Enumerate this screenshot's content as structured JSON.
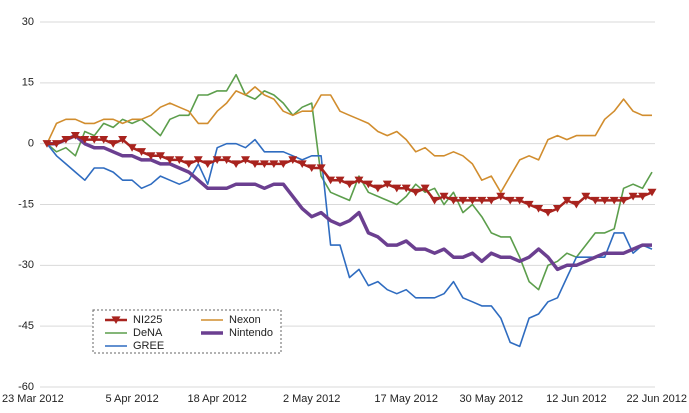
{
  "chart_data": {
    "type": "line",
    "categories": [
      "23 Mar 2012",
      null,
      null,
      null,
      null,
      null,
      null,
      null,
      null,
      "5 Apr 2012",
      null,
      null,
      null,
      null,
      null,
      null,
      null,
      null,
      "18 Apr 2012",
      null,
      null,
      null,
      null,
      null,
      null,
      null,
      null,
      null,
      "2 May 2012",
      null,
      null,
      null,
      null,
      null,
      null,
      null,
      null,
      null,
      "17 May 2012",
      null,
      null,
      null,
      null,
      null,
      null,
      null,
      null,
      "30 May 2012",
      null,
      null,
      null,
      null,
      null,
      null,
      null,
      null,
      "12 Jun 2012",
      null,
      null,
      null,
      null,
      null,
      null,
      null,
      "22 Jun 2012"
    ],
    "series": [
      {
        "name": "DeNA",
        "color": "#5c9e4c",
        "width": 1.6,
        "values": [
          0,
          -2,
          -1,
          -3,
          3,
          2,
          5,
          4,
          6,
          5,
          6,
          4,
          2,
          6,
          7,
          7,
          12,
          12,
          13,
          13,
          17,
          12,
          11,
          13,
          12,
          10,
          7,
          9,
          10,
          -8,
          -12,
          -13,
          -14,
          -8,
          -12,
          -13,
          -14,
          -15,
          -13,
          -10,
          -12,
          -11,
          -15,
          -12,
          -17,
          -15,
          -18,
          -22,
          -23,
          -23,
          -28,
          -34,
          -36,
          -30,
          -29,
          -27,
          -28,
          -25,
          -22,
          -22,
          -21,
          -11,
          -10,
          -11,
          -7
        ]
      },
      {
        "name": "Nexon",
        "color": "#d18d2e",
        "width": 1.6,
        "values": [
          0,
          5,
          6,
          6,
          5,
          5,
          6,
          6,
          5,
          6,
          6,
          7,
          9,
          10,
          9,
          8,
          5,
          5,
          8,
          10,
          13,
          12,
          14,
          12,
          11,
          8,
          7,
          8,
          8,
          12,
          12,
          8,
          7,
          6,
          5,
          3,
          2,
          3,
          1,
          -2,
          -1,
          -3,
          -3,
          -2,
          -3,
          -5,
          -9,
          -8,
          -12,
          -8,
          -4,
          -3,
          -4,
          1,
          2,
          1,
          2,
          2,
          2,
          6,
          8,
          11,
          8,
          7,
          7
        ]
      },
      {
        "name": "GREE",
        "color": "#2f6cc0",
        "width": 1.6,
        "values": [
          0,
          -3,
          -5,
          -7,
          -9,
          -6,
          -6,
          -7,
          -9,
          -9,
          -11,
          -10,
          -8,
          -9,
          -10,
          -9,
          -5,
          -10,
          -1,
          0,
          0,
          -1,
          1,
          -2,
          -2,
          -2,
          -3,
          -4,
          -3,
          -3,
          -25,
          -25,
          -33,
          -31,
          -35,
          -34,
          -36,
          -37,
          -36,
          -38,
          -38,
          -38,
          -37,
          -34,
          -38,
          -39,
          -40,
          -40,
          -43,
          -49,
          -50,
          -43,
          -42,
          -39,
          -38,
          -33,
          -28,
          -28,
          -28,
          -28,
          -22,
          -22,
          -27,
          -25,
          -26
        ]
      },
      {
        "name": "Nintendo",
        "color": "#6b3f90",
        "width": 3.5,
        "values": [
          0,
          0,
          1,
          2,
          0,
          -1,
          -1,
          -2,
          -3,
          -3,
          -4,
          -4,
          -5,
          -5,
          -6,
          -7,
          -9,
          -11,
          -11,
          -11,
          -10,
          -10,
          -10,
          -11,
          -10,
          -10,
          -13,
          -16,
          -18,
          -17,
          -19,
          -20,
          -19,
          -17,
          -22,
          -23,
          -25,
          -25,
          -24,
          -26,
          -26,
          -27,
          -26,
          -28,
          -28,
          -27,
          -29,
          -27,
          -28,
          -28,
          -29,
          -28,
          -26,
          -28,
          -31,
          -30,
          -30,
          -29,
          -28,
          -27,
          -27,
          -27,
          -26,
          -25,
          -25
        ]
      },
      {
        "name": "NI225",
        "color": "#a8231e",
        "width": 2.5,
        "marker": "triangle-down",
        "values": [
          0,
          0,
          1,
          2,
          1,
          1,
          1,
          0,
          1,
          -1,
          -2,
          -3,
          -3,
          -4,
          -4,
          -5,
          -4,
          -5,
          -4,
          -4,
          -5,
          -4,
          -5,
          -5,
          -5,
          -5,
          -4,
          -5,
          -6,
          -6,
          -9,
          -9,
          -10,
          -9,
          -10,
          -11,
          -10,
          -11,
          -11,
          -12,
          -11,
          -14,
          -13,
          -14,
          -14,
          -14,
          -14,
          -14,
          -13,
          -14,
          -14,
          -15,
          -16,
          -17,
          -16,
          -14,
          -15,
          -13,
          -14,
          -14,
          -14,
          -14,
          -13,
          -13,
          -12
        ]
      }
    ],
    "legend_order": [
      4,
      0,
      2,
      1,
      3
    ],
    "ylim": [
      -60,
      30
    ],
    "yticks": [
      30,
      15,
      0,
      -15,
      -30,
      -45,
      -60
    ],
    "grid": true,
    "legend": "lower left"
  }
}
